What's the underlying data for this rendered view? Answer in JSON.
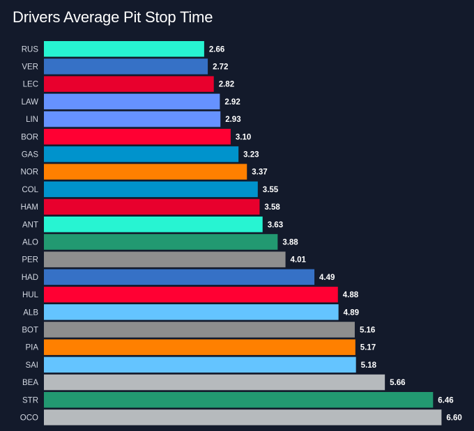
{
  "chart_data": {
    "type": "bar",
    "orientation": "horizontal",
    "title": "Drivers Average Pit Stop Time",
    "xlabel": "",
    "ylabel": "",
    "xlim": [
      0,
      6.85
    ],
    "grid": false,
    "legend": "none",
    "categories": [
      "RUS",
      "VER",
      "LEC",
      "LAW",
      "LIN",
      "BOR",
      "GAS",
      "NOR",
      "COL",
      "HAM",
      "ANT",
      "ALO",
      "PER",
      "HAD",
      "HUL",
      "ALB",
      "BOT",
      "PIA",
      "SAI",
      "BEA",
      "STR",
      "OCO"
    ],
    "values": [
      2.66,
      2.72,
      2.82,
      2.92,
      2.93,
      3.1,
      3.23,
      3.37,
      3.55,
      3.58,
      3.63,
      3.88,
      4.01,
      4.49,
      4.88,
      4.89,
      5.16,
      5.17,
      5.18,
      5.66,
      6.46,
      6.6
    ],
    "value_labels": [
      "2.66",
      "2.72",
      "2.82",
      "2.92",
      "2.93",
      "3.10",
      "3.23",
      "3.37",
      "3.55",
      "3.58",
      "3.63",
      "3.88",
      "4.01",
      "4.49",
      "4.88",
      "4.89",
      "5.16",
      "5.17",
      "5.18",
      "5.66",
      "6.46",
      "6.60"
    ],
    "colors": [
      "#27f4d2",
      "#3671c6",
      "#e8002d",
      "#6692ff",
      "#6692ff",
      "#ff0033",
      "#0093cc",
      "#ff8000",
      "#0093cc",
      "#e8002d",
      "#27f4d2",
      "#229971",
      "#8e8e8e",
      "#3671c6",
      "#ff0033",
      "#64c4ff",
      "#8e8e8e",
      "#ff8000",
      "#64c4ff",
      "#b6babd",
      "#229971",
      "#b6babd"
    ]
  },
  "theme": {
    "background": "#131a2b",
    "title_color": "#ffffff",
    "label_color": "#d3d8e2"
  }
}
